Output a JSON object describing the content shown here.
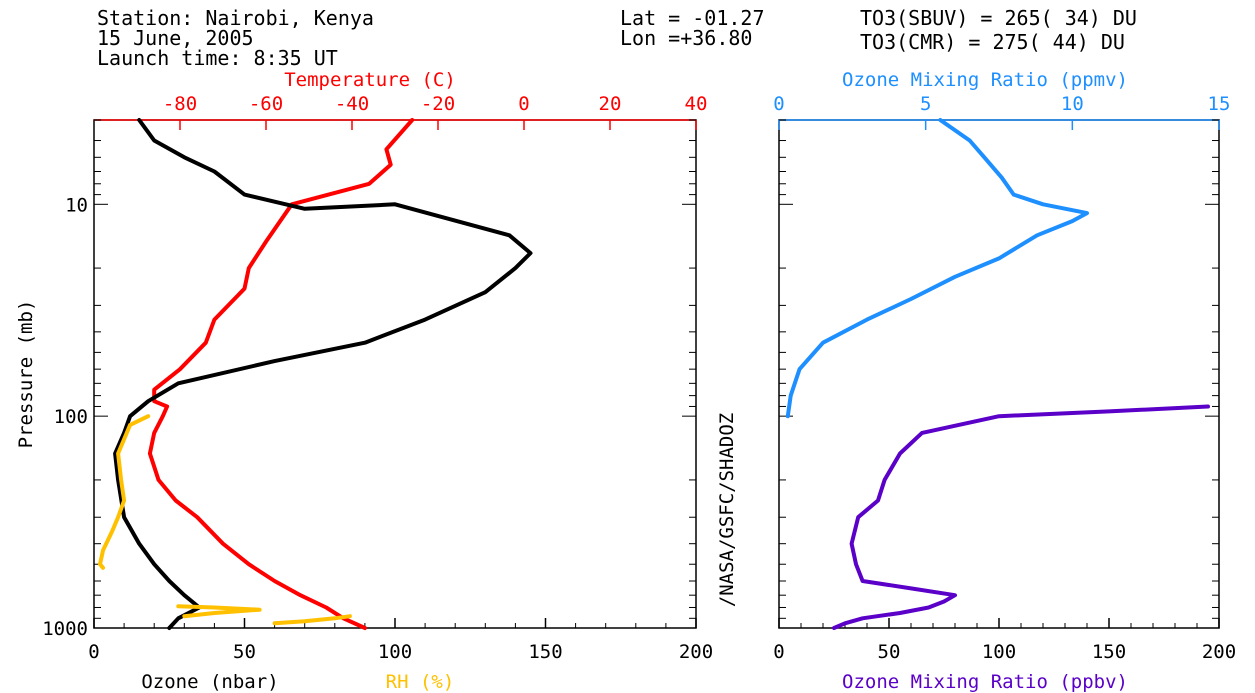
{
  "header": {
    "station": "Station: Nairobi, Kenya",
    "date": "15 June, 2005",
    "launch": "Launch time: 8:35 UT",
    "lat": "Lat  = -01.27",
    "lon": "Lon =+36.80",
    "to3_sbuv": "TO3(SBUV) = 265( 34) DU",
    "to3_cmr": "TO3(CMR)  = 275( 44) DU"
  },
  "credit": "/NASA/GSFC/SHADOZ",
  "colors": {
    "temperature": "#ff0000",
    "ozone": "#000000",
    "rh": "#ffc000",
    "o3_ppmv": "#1e8fff",
    "o3_ppbv": "#5a00c8"
  },
  "chart_data": [
    {
      "type": "line",
      "panel": "left",
      "ylabel": "Pressure (mb)",
      "y_scale": "log",
      "ylim": [
        1000,
        4
      ],
      "y_ticks": [
        {
          "value": 10,
          "label": "10"
        },
        {
          "value": 100,
          "label": "100"
        },
        {
          "value": 1000,
          "label": "1000"
        }
      ],
      "x_bottom": {
        "label_a": "Ozone (nbar)",
        "label_b": "RH (%)",
        "range": [
          0,
          200
        ],
        "ticks": [
          "0",
          "50",
          "100",
          "150",
          "200"
        ]
      },
      "x_top": {
        "label": "Temperature (C)",
        "range": [
          -100,
          40
        ],
        "ticks": [
          "-80",
          "-60",
          "-40",
          "-20",
          "0",
          "20",
          "40"
        ]
      },
      "series": [
        {
          "key": "temperature",
          "axis": "top",
          "points": [
            [
              -37,
              1000
            ],
            [
              -42,
              900
            ],
            [
              -46,
              800
            ],
            [
              -52,
              700
            ],
            [
              -58,
              600
            ],
            [
              -64,
              500
            ],
            [
              -70,
              400
            ],
            [
              -76,
              300
            ],
            [
              -81,
              250
            ],
            [
              -85,
              200
            ],
            [
              -87,
              150
            ],
            [
              -86,
              120
            ],
            [
              -84,
              100
            ],
            [
              -83,
              90
            ],
            [
              -86,
              85
            ],
            [
              -86,
              75
            ],
            [
              -80,
              60
            ],
            [
              -74,
              45
            ],
            [
              -72,
              35
            ],
            [
              -65,
              25
            ],
            [
              -64,
              20
            ],
            [
              -60,
              15
            ],
            [
              -54,
              10
            ],
            [
              -36,
              8
            ],
            [
              -31,
              6.5
            ],
            [
              -32,
              5.5
            ],
            [
              -26,
              4
            ]
          ]
        },
        {
          "key": "ozone",
          "axis": "bottom",
          "points": [
            [
              25,
              1000
            ],
            [
              28,
              900
            ],
            [
              35,
              800
            ],
            [
              30,
              700
            ],
            [
              25,
              600
            ],
            [
              20,
              500
            ],
            [
              15,
              400
            ],
            [
              10,
              300
            ],
            [
              8,
              200
            ],
            [
              7,
              150
            ],
            [
              10,
              120
            ],
            [
              12,
              100
            ],
            [
              18,
              85
            ],
            [
              28,
              70
            ],
            [
              60,
              55
            ],
            [
              90,
              45
            ],
            [
              110,
              35
            ],
            [
              130,
              26
            ],
            [
              140,
              20
            ],
            [
              145,
              17
            ],
            [
              138,
              14
            ],
            [
              100,
              10
            ],
            [
              70,
              10.5
            ],
            [
              50,
              9
            ],
            [
              40,
              7
            ],
            [
              30,
              6
            ],
            [
              20,
              5
            ],
            [
              15,
              4
            ]
          ]
        },
        {
          "key": "rh",
          "axis": "bottom",
          "points": [
            [
              3,
              520
            ],
            [
              2,
              500
            ],
            [
              3,
              430
            ],
            [
              6,
              350
            ],
            [
              8,
              300
            ],
            [
              10,
              250
            ],
            [
              9,
              200
            ],
            [
              8,
              150
            ],
            [
              12,
              110
            ],
            [
              18,
              100
            ]
          ]
        },
        {
          "key": "rh",
          "axis": "bottom",
          "points": [
            [
              60,
              950
            ],
            [
              70,
              930
            ],
            [
              80,
              900
            ],
            [
              85,
              880
            ]
          ]
        },
        {
          "key": "rh",
          "axis": "bottom",
          "points": [
            [
              30,
              880
            ],
            [
              40,
              850
            ],
            [
              55,
              820
            ],
            [
              40,
              800
            ],
            [
              28,
              790
            ]
          ]
        }
      ]
    },
    {
      "type": "line",
      "panel": "right",
      "y_scale": "log",
      "ylim": [
        1000,
        4
      ],
      "x_bottom": {
        "label": "Ozone Mixing Ratio (ppbv)",
        "range": [
          0,
          200
        ],
        "ticks": [
          "0",
          "50",
          "100",
          "150",
          "200"
        ]
      },
      "x_top": {
        "label": "Ozone Mixing Ratio (ppmv)",
        "range": [
          0,
          15
        ],
        "ticks": [
          "0",
          "5",
          "10",
          "15"
        ]
      },
      "series": [
        {
          "key": "o3_ppmv",
          "axis": "top",
          "points": [
            [
              0.3,
              100
            ],
            [
              0.4,
              80
            ],
            [
              0.7,
              60
            ],
            [
              1.5,
              45
            ],
            [
              3,
              35
            ],
            [
              4.5,
              28
            ],
            [
              6,
              22
            ],
            [
              7.5,
              18
            ],
            [
              8.8,
              14
            ],
            [
              10,
              12
            ],
            [
              10.5,
              11
            ],
            [
              9,
              10
            ],
            [
              8,
              9
            ],
            [
              7.6,
              7.5
            ],
            [
              7,
              6
            ],
            [
              6.5,
              5
            ],
            [
              5.5,
              4
            ]
          ]
        },
        {
          "key": "o3_ppbv",
          "axis": "bottom",
          "points": [
            [
              25,
              1000
            ],
            [
              30,
              950
            ],
            [
              38,
              900
            ],
            [
              55,
              850
            ],
            [
              68,
              800
            ],
            [
              75,
              750
            ],
            [
              80,
              700
            ],
            [
              60,
              650
            ],
            [
              38,
              600
            ],
            [
              35,
              500
            ],
            [
              33,
              400
            ],
            [
              36,
              300
            ],
            [
              45,
              250
            ],
            [
              48,
              200
            ],
            [
              55,
              150
            ],
            [
              65,
              120
            ],
            [
              100,
              100
            ],
            [
              150,
              95
            ],
            [
              195,
              90
            ]
          ]
        }
      ]
    }
  ]
}
